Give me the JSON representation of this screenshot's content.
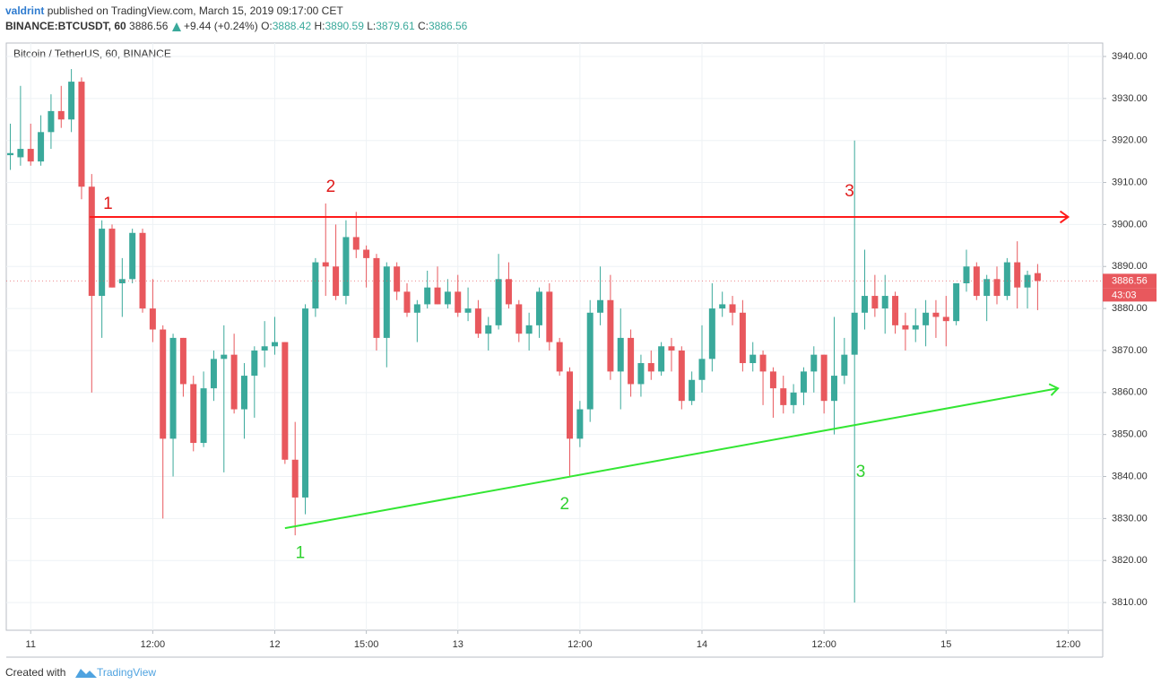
{
  "header": {
    "author": "valdrint",
    "published": "published on TradingView.com, March 15, 2019 09:17:00 CET",
    "symbol": "BINANCE:BTCUSDT, 60",
    "price": "3886.56",
    "change": "+9.44 (+0.24%)",
    "o_label": "O:",
    "o": "3888.42",
    "h_label": "H:",
    "h": "3890.59",
    "l_label": "L:",
    "l": "3879.61",
    "c_label": "C:",
    "c": "3886.56"
  },
  "footer": {
    "created": "Created with",
    "brand": "TradingView"
  },
  "chart_data": {
    "type": "candlestick",
    "title": "Bitcoin / TetherUS, 60, BINANCE",
    "up_color": "#3aa99b",
    "down_color": "#e8585d",
    "grid": true,
    "countdown": "43:03",
    "x": [
      -2,
      -1,
      0,
      1,
      2,
      3,
      4,
      5,
      6,
      7,
      8,
      9,
      10,
      11,
      12,
      13,
      14,
      15,
      16,
      17,
      18,
      19,
      20,
      21,
      22,
      23,
      24,
      25,
      26,
      27,
      28,
      29,
      30,
      31,
      32,
      33,
      34,
      35,
      36,
      37,
      38,
      39,
      40,
      41,
      42,
      43,
      44,
      45,
      46,
      47,
      48,
      49,
      50,
      51,
      52,
      53,
      54,
      55,
      56,
      57,
      58,
      59,
      60,
      61,
      62,
      63,
      64,
      65,
      66,
      67,
      68,
      69,
      70,
      71,
      72,
      73,
      74,
      75,
      76,
      77,
      78,
      79,
      80,
      81,
      82,
      83,
      84,
      85,
      86,
      87,
      88,
      89,
      90,
      91,
      92,
      93,
      94,
      95,
      96,
      97,
      98,
      99
    ],
    "ohlc": [
      [
        3916.5,
        3924,
        3913,
        3917
      ],
      [
        3916,
        3933,
        3914,
        3918
      ],
      [
        3918,
        3924,
        3914,
        3915
      ],
      [
        3915,
        3926,
        3914,
        3922
      ],
      [
        3922,
        3931,
        3918,
        3927
      ],
      [
        3927,
        3933,
        3923,
        3925
      ],
      [
        3925,
        3937,
        3922,
        3934
      ],
      [
        3934,
        3935,
        3906,
        3909
      ],
      [
        3909,
        3912,
        3860,
        3883
      ],
      [
        3883,
        3901,
        3873,
        3899
      ],
      [
        3899,
        3900,
        3885,
        3885
      ],
      [
        3886,
        3892,
        3878,
        3887
      ],
      [
        3887,
        3899,
        3886,
        3898
      ],
      [
        3898,
        3899,
        3879,
        3880
      ],
      [
        3880,
        3887,
        3872,
        3875
      ],
      [
        3875,
        3876,
        3830,
        3849
      ],
      [
        3849,
        3874,
        3840,
        3873
      ],
      [
        3873,
        3873,
        3859,
        3862
      ],
      [
        3862,
        3864,
        3846,
        3848
      ],
      [
        3848,
        3865,
        3847,
        3861
      ],
      [
        3861,
        3870,
        3858,
        3868
      ],
      [
        3868,
        3876,
        3841,
        3869
      ],
      [
        3869,
        3874,
        3855,
        3856
      ],
      [
        3856,
        3867,
        3849,
        3864
      ],
      [
        3864,
        3871,
        3854,
        3870
      ],
      [
        3870,
        3877,
        3866,
        3871
      ],
      [
        3871,
        3878,
        3869,
        3872
      ],
      [
        3872,
        3872,
        3843,
        3844
      ],
      [
        3844,
        3853,
        3826,
        3835
      ],
      [
        3835,
        3881,
        3831,
        3880
      ],
      [
        3880,
        3892,
        3878,
        3891
      ],
      [
        3891,
        3905,
        3883,
        3890
      ],
      [
        3890,
        3900,
        3882,
        3883
      ],
      [
        3883,
        3901,
        3881,
        3897
      ],
      [
        3897,
        3903,
        3892,
        3894
      ],
      [
        3894,
        3895,
        3885,
        3892
      ],
      [
        3892,
        3893,
        3870,
        3873
      ],
      [
        3873,
        3891,
        3866,
        3890
      ],
      [
        3890,
        3891,
        3882,
        3884
      ],
      [
        3884,
        3886,
        3878,
        3879
      ],
      [
        3879,
        3882,
        3872,
        3881
      ],
      [
        3881,
        3889,
        3880,
        3885
      ],
      [
        3885,
        3890,
        3881,
        3881
      ],
      [
        3881,
        3887,
        3880,
        3884
      ],
      [
        3884,
        3888,
        3878,
        3879
      ],
      [
        3879,
        3885,
        3877,
        3880
      ],
      [
        3880,
        3882,
        3873,
        3874
      ],
      [
        3874,
        3878,
        3870,
        3876
      ],
      [
        3876,
        3893,
        3875,
        3887
      ],
      [
        3887,
        3891,
        3880,
        3881
      ],
      [
        3881,
        3882,
        3872,
        3874
      ],
      [
        3874,
        3879,
        3870,
        3876
      ],
      [
        3876,
        3885,
        3873,
        3884
      ],
      [
        3884,
        3886,
        3870,
        3872
      ],
      [
        3872,
        3873,
        3864,
        3865
      ],
      [
        3865,
        3866,
        3840,
        3849
      ],
      [
        3849,
        3858,
        3847,
        3856
      ],
      [
        3856,
        3882,
        3853,
        3879
      ],
      [
        3879,
        3890,
        3876,
        3882
      ],
      [
        3882,
        3888,
        3863,
        3865
      ],
      [
        3865,
        3880,
        3856,
        3873
      ],
      [
        3873,
        3875,
        3859,
        3862
      ],
      [
        3862,
        3869,
        3859,
        3867
      ],
      [
        3867,
        3870,
        3863,
        3865
      ],
      [
        3865,
        3872,
        3864,
        3871
      ],
      [
        3871,
        3873,
        3865,
        3870
      ],
      [
        3870,
        3871,
        3856,
        3858
      ],
      [
        3858,
        3865,
        3857,
        3863
      ],
      [
        3863,
        3876,
        3860,
        3868
      ],
      [
        3868,
        3886,
        3865,
        3880
      ],
      [
        3880,
        3884,
        3878,
        3881
      ],
      [
        3881,
        3883,
        3876,
        3879
      ],
      [
        3879,
        3882,
        3865,
        3867
      ],
      [
        3867,
        3872,
        3865,
        3869
      ],
      [
        3869,
        3870,
        3857,
        3865
      ],
      [
        3865,
        3866,
        3854,
        3861
      ],
      [
        3861,
        3864,
        3855,
        3857
      ],
      [
        3857,
        3862,
        3855,
        3860
      ],
      [
        3860,
        3866,
        3857,
        3865
      ],
      [
        3865,
        3871,
        3860,
        3869
      ],
      [
        3869,
        3869,
        3855,
        3858
      ],
      [
        3858,
        3878,
        3850,
        3864
      ],
      [
        3864,
        3873,
        3862,
        3869
      ],
      [
        3869,
        3920,
        3810,
        3879
      ],
      [
        3879,
        3894,
        3875,
        3883
      ],
      [
        3883,
        3888,
        3878,
        3880
      ],
      [
        3880,
        3888,
        3874,
        3883
      ],
      [
        3883,
        3884,
        3874,
        3876
      ],
      [
        3876,
        3879,
        3870,
        3875
      ],
      [
        3875,
        3880,
        3872,
        3876
      ],
      [
        3876,
        3882,
        3871,
        3879
      ],
      [
        3879,
        3882,
        3873,
        3878
      ],
      [
        3878,
        3883,
        3871,
        3877
      ],
      [
        3877,
        3886,
        3876,
        3886
      ],
      [
        3886,
        3894,
        3884,
        3890
      ],
      [
        3890,
        3891,
        3882,
        3883
      ],
      [
        3883,
        3888,
        3877,
        3887
      ],
      [
        3887,
        3890,
        3881,
        3883
      ],
      [
        3883,
        3892,
        3882,
        3891
      ],
      [
        3891,
        3896,
        3880,
        3885
      ],
      [
        3885,
        3889,
        3880,
        3888
      ],
      [
        3888.42,
        3890.59,
        3879.61,
        3886.56
      ]
    ],
    "xlim": [
      -2.4,
      105.4
    ],
    "xticks": [
      {
        "value": 0,
        "label": "11"
      },
      {
        "value": 12,
        "label": "12:00"
      },
      {
        "value": 24,
        "label": "12"
      },
      {
        "value": 33,
        "label": "15:00"
      },
      {
        "value": 42,
        "label": "13"
      },
      {
        "value": 54,
        "label": "12:00"
      },
      {
        "value": 66,
        "label": "14"
      },
      {
        "value": 78,
        "label": "12:00"
      },
      {
        "value": 90,
        "label": "15"
      },
      {
        "value": 102,
        "label": "12:00"
      }
    ],
    "ylim": [
      3803.4,
      3943.2
    ],
    "yticks": [
      {
        "value": 3810,
        "label": "3810.00"
      },
      {
        "value": 3820,
        "label": "3820.00"
      },
      {
        "value": 3830,
        "label": "3830.00"
      },
      {
        "value": 3840,
        "label": "3840.00"
      },
      {
        "value": 3850,
        "label": "3850.00"
      },
      {
        "value": 3860,
        "label": "3860.00"
      },
      {
        "value": 3870,
        "label": "3870.00"
      },
      {
        "value": 3880,
        "label": "3880.00"
      },
      {
        "value": 3890,
        "label": "3890.00"
      },
      {
        "value": 3900,
        "label": "3900.00"
      },
      {
        "value": 3910,
        "label": "3910.00"
      },
      {
        "value": 3920,
        "label": "3920.00"
      },
      {
        "value": 3930,
        "label": "3930.00"
      },
      {
        "value": 3940,
        "label": "3940.00"
      }
    ],
    "lines": [
      {
        "color": "#ff1a1a",
        "from": [
          5.8,
          3901.8
        ],
        "to": [
          102,
          3901.8
        ]
      },
      {
        "color": "#33e633",
        "from": [
          25,
          3827.7
        ],
        "to": [
          101,
          3861
        ]
      }
    ],
    "labels": [
      {
        "text": "1",
        "color": "#e01b1b",
        "x": 7.6,
        "y": 3904.8
      },
      {
        "text": "2",
        "color": "#e01b1b",
        "x": 29.5,
        "y": 3908.8
      },
      {
        "text": "3",
        "color": "#e01b1b",
        "x": 80.5,
        "y": 3907.8
      },
      {
        "text": "1",
        "color": "#2fd12f",
        "x": 26.5,
        "y": 3821.7
      },
      {
        "text": "2",
        "color": "#2fd12f",
        "x": 52.5,
        "y": 3833.3
      },
      {
        "text": "3",
        "color": "#2fd12f",
        "x": 81.6,
        "y": 3841
      }
    ]
  }
}
